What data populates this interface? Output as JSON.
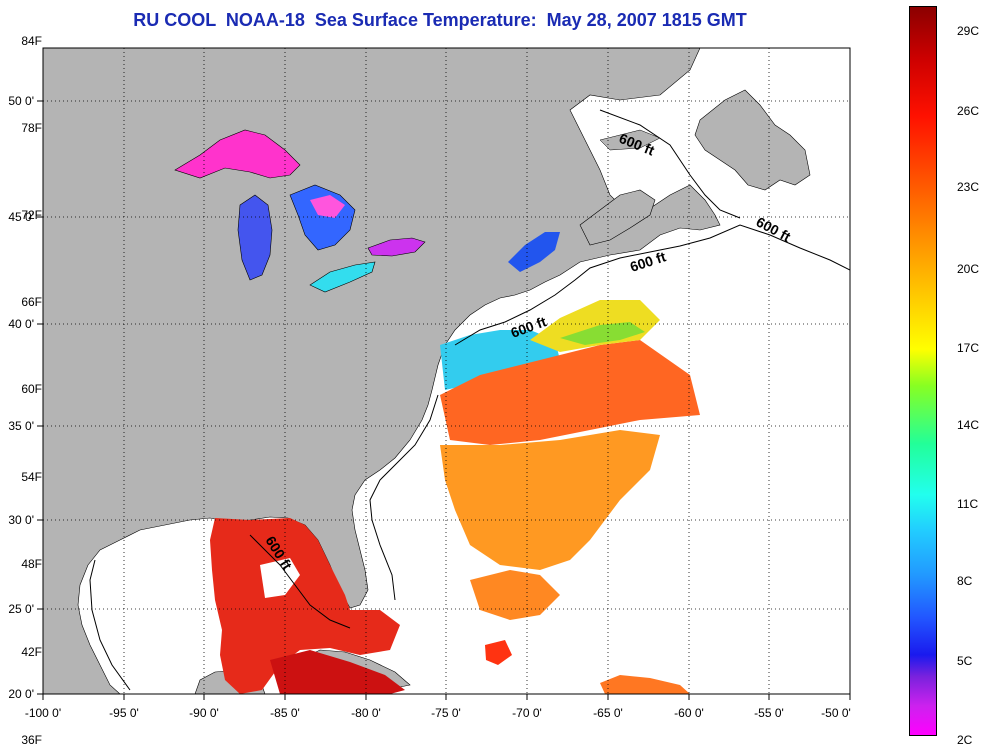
{
  "title": "RU COOL  NOAA-18  Sea Surface Temperature:  May 28, 2007 1815 GMT",
  "map": {
    "lon_ticks": [
      "-100 0'",
      "-95 0'",
      "-90 0'",
      "-85 0'",
      "-80 0'",
      "-75 0'",
      "-70 0'",
      "-65 0'",
      "-60 0'",
      "-55 0'",
      "-50 0'"
    ],
    "lat_ticks": [
      "50 0'",
      "45 0'",
      "40 0'",
      "35 0'",
      "30 0'",
      "25 0'",
      "20 0'"
    ],
    "contour_label": "600 ft",
    "colors": {
      "land": "#b4b4b4",
      "ocean": "#ffffff",
      "title": "#1a2bb3"
    }
  },
  "colorbar": {
    "fahrenheit_labels": [
      "84F",
      "78F",
      "72F",
      "66F",
      "60F",
      "54F",
      "48F",
      "42F",
      "36F"
    ],
    "celsius_labels": [
      "29C",
      "26C",
      "23C",
      "20C",
      "17C",
      "14C",
      "11C",
      "8C",
      "5C",
      "2C"
    ]
  }
}
